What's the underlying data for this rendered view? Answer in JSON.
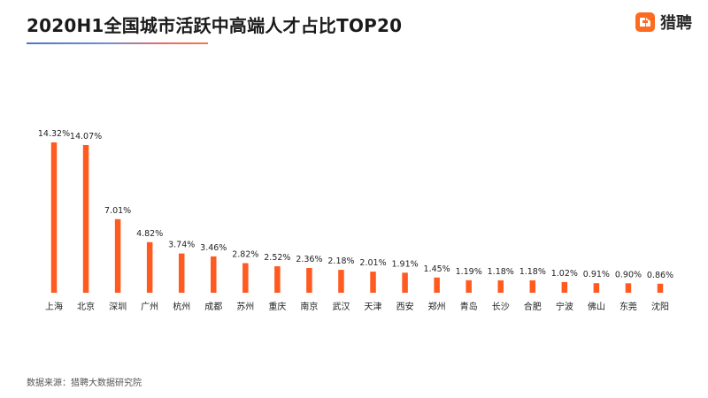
{
  "header": {
    "title": "2020H1全国城市活跃中高端人才占比TOP20",
    "brand_name": "猎聘",
    "brand_icon": "liepin-logo-icon"
  },
  "footer": {
    "source": "数据来源：猎聘大数据研究院"
  },
  "colors": {
    "bar": "#ff5a1f",
    "brand": "#ff6a21",
    "text": "#1b1b1b"
  },
  "chart_data": {
    "type": "bar",
    "title": "2020H1全国城市活跃中高端人才占比TOP20",
    "xlabel": "",
    "ylabel": "",
    "categories": [
      "上海",
      "北京",
      "深圳",
      "广州",
      "杭州",
      "成都",
      "苏州",
      "重庆",
      "南京",
      "武汉",
      "天津",
      "西安",
      "郑州",
      "青岛",
      "长沙",
      "合肥",
      "宁波",
      "佛山",
      "东莞",
      "沈阳"
    ],
    "values": [
      14.32,
      14.07,
      7.01,
      4.82,
      3.74,
      3.46,
      2.82,
      2.52,
      2.36,
      2.18,
      2.01,
      1.91,
      1.45,
      1.19,
      1.18,
      1.18,
      1.02,
      0.91,
      0.9,
      0.86
    ],
    "value_labels": [
      "14.32%",
      "14.07%",
      "7.01%",
      "4.82%",
      "3.74%",
      "3.46%",
      "2.82%",
      "2.52%",
      "2.36%",
      "2.18%",
      "2.01%",
      "1.91%",
      "1.45%",
      "1.19%",
      "1.18%",
      "1.18%",
      "1.02%",
      "0.91%",
      "0.90%",
      "0.86%"
    ],
    "ylim": [
      0,
      14.32
    ],
    "grid": false,
    "legend": "none"
  }
}
